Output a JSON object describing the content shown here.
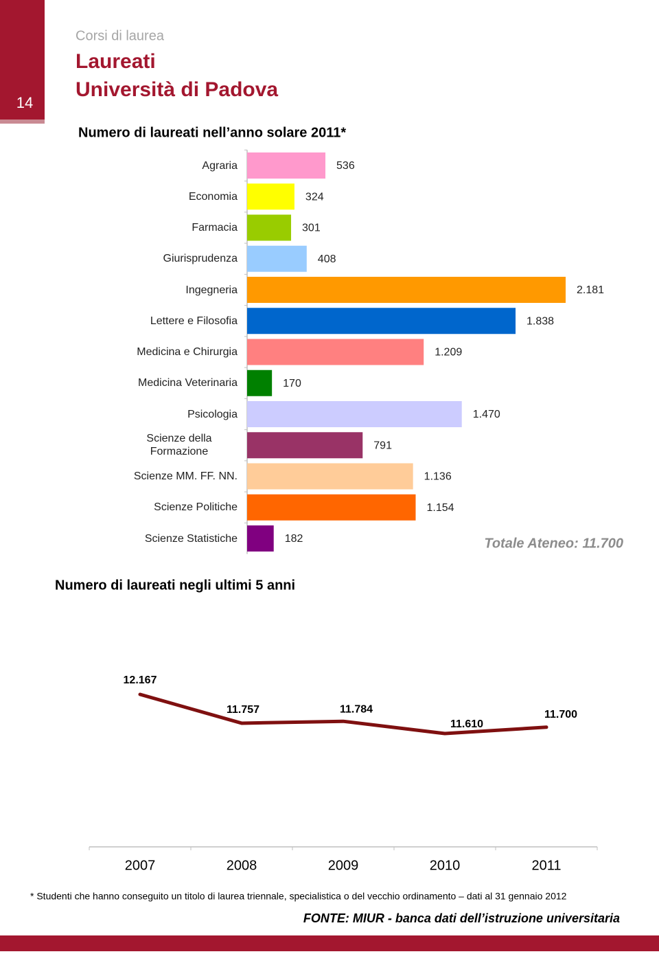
{
  "header": {
    "page_number": "14",
    "section": "Corsi di laurea",
    "title": [
      "Laureati",
      "Università di Padova"
    ]
  },
  "chart_data": [
    {
      "type": "bar",
      "orientation": "horizontal",
      "title": "Numero di laureati nell’anno solare 2011*",
      "categories": [
        "Agraria",
        "Economia",
        "Farmacia",
        "Giurisprudenza",
        "Ingegneria",
        "Lettere e Filosofia",
        "Medicina e Chirurgia",
        "Medicina Veterinaria",
        "Psicologia",
        "Scienze della Formazione",
        "Scienze MM. FF. NN.",
        "Scienze Politiche",
        "Scienze Statistiche"
      ],
      "values": [
        536,
        324,
        301,
        408,
        2181,
        1838,
        1209,
        170,
        1470,
        791,
        1136,
        1154,
        182
      ],
      "value_labels": [
        "536",
        "324",
        "301",
        "408",
        "2.181",
        "1.838",
        "1.209",
        "170",
        "1.470",
        "791",
        "1.136",
        "1.154",
        "182"
      ],
      "colors": [
        "#ff99cc",
        "#ffff00",
        "#99cc00",
        "#99ccff",
        "#ff9900",
        "#0066cc",
        "#ff8080",
        "#008000",
        "#ccccff",
        "#993366",
        "#ffcc99",
        "#ff6600",
        "#800080"
      ],
      "annotation": "Totale Ateneo: 11.700"
    },
    {
      "type": "line",
      "title": "Numero di laureati negli ultimi 5 anni",
      "categories": [
        "2007",
        "2008",
        "2009",
        "2010",
        "2011"
      ],
      "values": [
        12167,
        11757,
        11784,
        11610,
        11700
      ],
      "value_labels": [
        "12.167",
        "11.757",
        "11.784",
        "11.610",
        "11.700"
      ],
      "color": "#7f1010"
    }
  ],
  "footnote": "* Studenti che hanno conseguito un titolo di laurea triennale, specialistica o del vecchio ordinamento – dati al 31 gennaio 2012",
  "source": "FONTE: MIUR - banca dati dell’istruzione universitaria"
}
